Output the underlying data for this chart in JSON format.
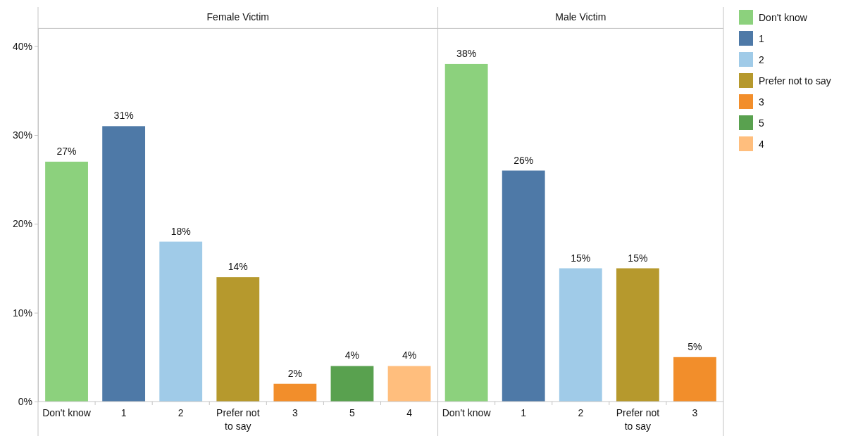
{
  "chart_data": [
    {
      "type": "bar",
      "title": "Female Victim",
      "categories": [
        "Don't know",
        "1",
        "2",
        "Prefer not to say",
        "3",
        "5",
        "4"
      ],
      "stacked": true,
      "series": [
        {
          "name": "Don't know",
          "color": "#8cd17d",
          "values": [
            27,
            null,
            null,
            null,
            null,
            null,
            null
          ],
          "value_labels": [
            "27%",
            null,
            null,
            null,
            null,
            null,
            null
          ]
        },
        {
          "name": "1",
          "color": "#4e79a7",
          "values": [
            null,
            31,
            null,
            null,
            null,
            null,
            null
          ],
          "value_labels": [
            null,
            "31%",
            null,
            null,
            null,
            null,
            null
          ]
        },
        {
          "name": "2",
          "color": "#a0cbe8",
          "values": [
            null,
            null,
            18,
            null,
            null,
            null,
            null
          ],
          "value_labels": [
            null,
            null,
            "18%",
            null,
            null,
            null,
            null
          ]
        },
        {
          "name": "Prefer not to say",
          "color": "#b6992d",
          "values": [
            null,
            null,
            null,
            14,
            null,
            null,
            null
          ],
          "value_labels": [
            null,
            null,
            null,
            "14%",
            null,
            null,
            null
          ]
        },
        {
          "name": "3",
          "color": "#f28e2b",
          "values": [
            null,
            null,
            null,
            null,
            2,
            null,
            null
          ],
          "value_labels": [
            null,
            null,
            null,
            null,
            "2%",
            null,
            null
          ]
        },
        {
          "name": "5",
          "color": "#59a14f",
          "values": [
            null,
            null,
            null,
            null,
            null,
            4,
            null
          ],
          "value_labels": [
            null,
            null,
            null,
            null,
            null,
            "4%",
            null
          ]
        },
        {
          "name": "4",
          "color": "#ffbe7d",
          "values": [
            null,
            null,
            null,
            null,
            null,
            null,
            4
          ],
          "value_labels": [
            null,
            null,
            null,
            null,
            null,
            null,
            "4%"
          ]
        }
      ],
      "ylim": [
        0,
        42
      ],
      "yticks": [
        {
          "value": 0,
          "label": "0%"
        },
        {
          "value": 10,
          "label": "10%"
        },
        {
          "value": 20,
          "label": "20%"
        },
        {
          "value": 30,
          "label": "30%"
        },
        {
          "value": 40,
          "label": "40%"
        }
      ],
      "grid": false,
      "legend": "right"
    },
    {
      "type": "bar",
      "title": "Male Victim",
      "categories": [
        "Don't know",
        "1",
        "2",
        "Prefer not to say",
        "3"
      ],
      "stacked": true,
      "series": [
        {
          "name": "Don't know",
          "color": "#8cd17d",
          "values": [
            38,
            null,
            null,
            null,
            null
          ],
          "value_labels": [
            "38%",
            null,
            null,
            null,
            null
          ]
        },
        {
          "name": "1",
          "color": "#4e79a7",
          "values": [
            null,
            26,
            null,
            null,
            null
          ],
          "value_labels": [
            null,
            "26%",
            null,
            null,
            null
          ]
        },
        {
          "name": "2",
          "color": "#a0cbe8",
          "values": [
            null,
            null,
            15,
            null,
            null
          ],
          "value_labels": [
            null,
            null,
            "15%",
            null,
            null
          ]
        },
        {
          "name": "Prefer not to say",
          "color": "#b6992d",
          "values": [
            null,
            null,
            null,
            15,
            null
          ],
          "value_labels": [
            null,
            null,
            null,
            "15%",
            null
          ]
        },
        {
          "name": "3",
          "color": "#f28e2b",
          "values": [
            null,
            null,
            null,
            null,
            5
          ],
          "value_labels": [
            null,
            null,
            null,
            null,
            "5%"
          ]
        }
      ],
      "ylim": [
        0,
        42
      ],
      "grid": false,
      "tick_labels": "x",
      "legend": "right"
    }
  ]
}
